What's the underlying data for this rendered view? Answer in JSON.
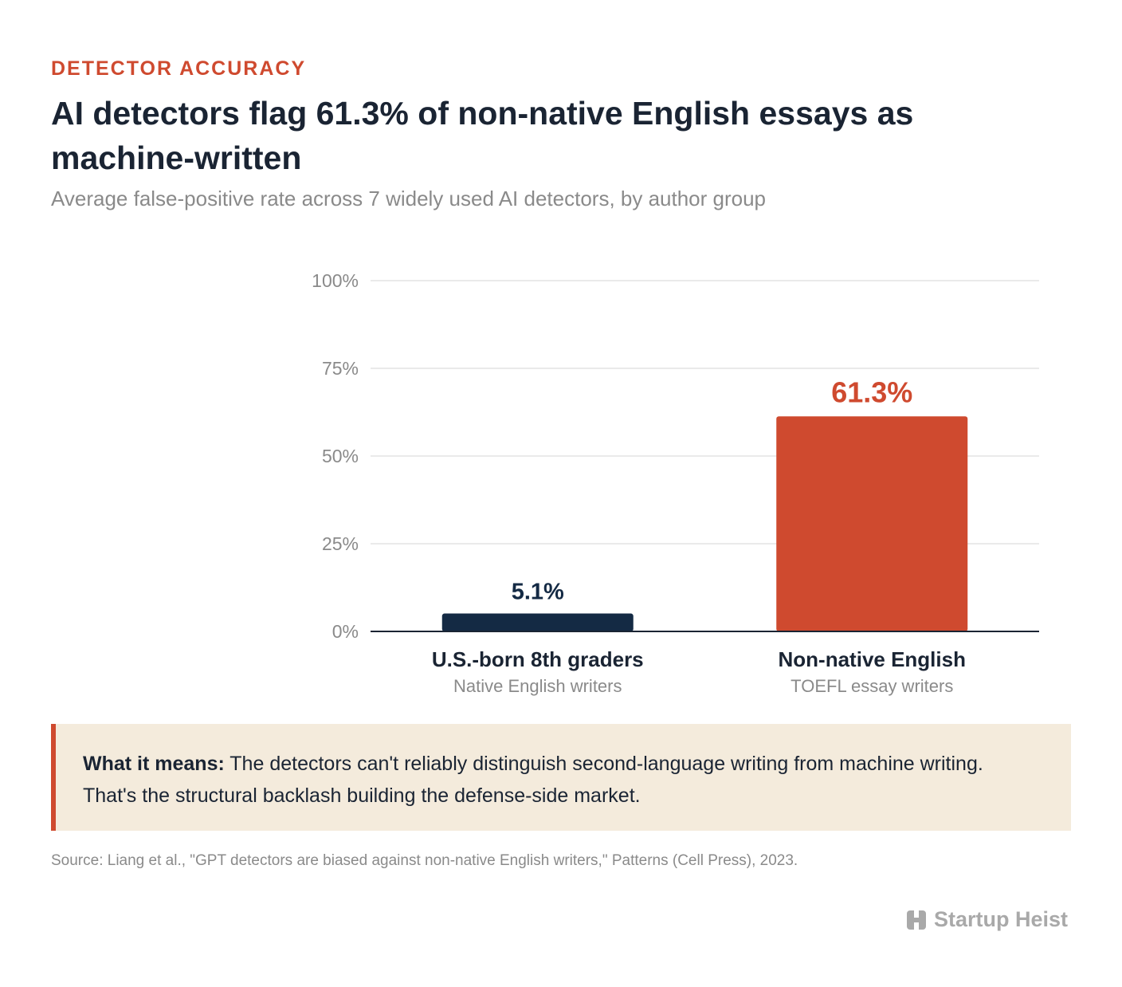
{
  "eyebrow": "DETECTOR ACCURACY",
  "title": "AI detectors flag 61.3% of non-native English essays as machine-written",
  "subtitle": "Average false-positive rate across 7 widely used AI detectors, by author group",
  "chart_data": {
    "type": "bar",
    "categories": [
      "U.S.-born 8th graders",
      "Non-native English"
    ],
    "category_sublabels": [
      "Native English writers",
      "TOEFL essay writers"
    ],
    "values": [
      5.1,
      61.3
    ],
    "value_labels": [
      "5.1%",
      "61.3%"
    ],
    "bar_colors": [
      "#142a44",
      "#cf4a2f"
    ],
    "ylim": [
      0,
      100
    ],
    "yticks": [
      0,
      25,
      50,
      75,
      100
    ],
    "ytick_labels": [
      "0%",
      "25%",
      "50%",
      "75%",
      "100%"
    ],
    "grid": true
  },
  "callout": {
    "lead": "What it means:",
    "text": " The detectors can't reliably distinguish second-language writing from machine writing. That's the structural backlash building the defense-side market."
  },
  "source": "Source: Liang et al., \"GPT detectors are biased against non-native English writers,\" Patterns (Cell Press), 2023.",
  "brand": {
    "name": "Startup Heist",
    "icon": "startup-heist-logo-icon"
  },
  "colors": {
    "accent": "#cf4a2f",
    "navy": "#142a44",
    "callout_bg": "#f4ebdc"
  }
}
